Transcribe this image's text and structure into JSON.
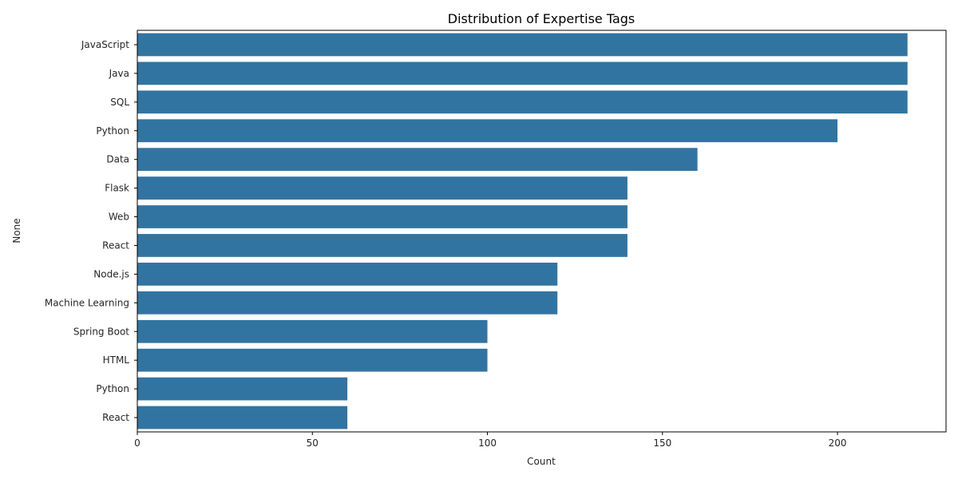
{
  "chart_data": {
    "type": "bar",
    "orientation": "horizontal",
    "title": "Distribution of Expertise Tags",
    "xlabel": "Count",
    "ylabel": "None",
    "categories": [
      "JavaScript",
      "Java",
      "SQL",
      "Python",
      "Data",
      "Flask",
      "Web",
      "React",
      "Node.js",
      "Machine Learning",
      "Spring Boot",
      "HTML",
      "Python",
      "React"
    ],
    "values": [
      220,
      220,
      220,
      200,
      160,
      140,
      140,
      140,
      120,
      120,
      100,
      100,
      60,
      60
    ],
    "xlim": [
      0,
      231
    ],
    "xticks": [
      0,
      50,
      100,
      150,
      200
    ],
    "grid": false,
    "bar_color": "#3274a1"
  }
}
